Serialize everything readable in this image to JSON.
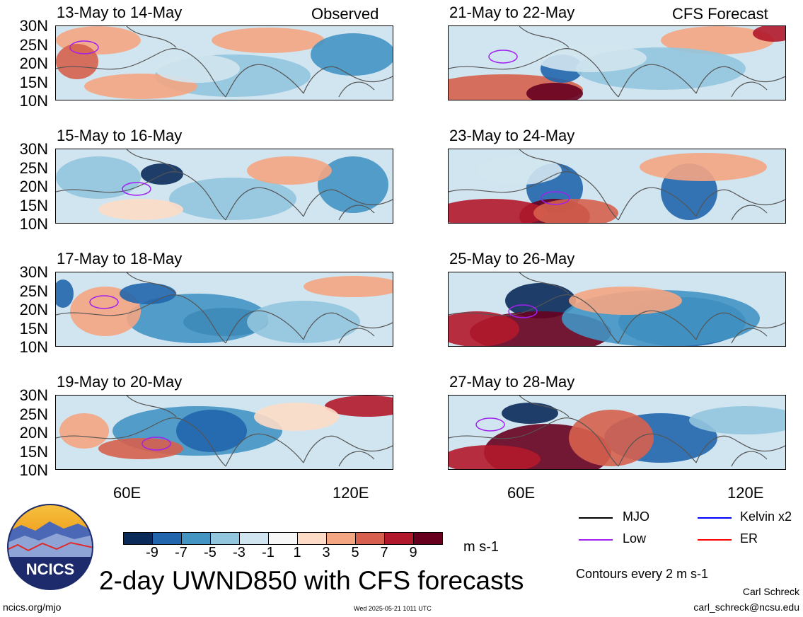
{
  "panels": [
    {
      "title": "13-May to 14-May",
      "tag": "Observed"
    },
    {
      "title": "21-May to 22-May",
      "tag": "CFS Forecast"
    },
    {
      "title": "15-May to 16-May",
      "tag": ""
    },
    {
      "title": "23-May to 24-May",
      "tag": ""
    },
    {
      "title": "17-May to 18-May",
      "tag": ""
    },
    {
      "title": "25-May to 26-May",
      "tag": ""
    },
    {
      "title": "19-May to 20-May",
      "tag": ""
    },
    {
      "title": "27-May to 28-May",
      "tag": ""
    }
  ],
  "lat_labels": [
    "30N",
    "25N",
    "20N",
    "15N",
    "10N"
  ],
  "lon_labels": [
    "60E",
    "120E"
  ],
  "colorbar": {
    "colors": [
      "#0a2a5a",
      "#2166ac",
      "#4393c3",
      "#92c5de",
      "#d1e5f0",
      "#f7f7f7",
      "#fddbc7",
      "#f4a582",
      "#d6604d",
      "#b2182b",
      "#67001f"
    ],
    "labels": [
      "-9",
      "-7",
      "-5",
      "-3",
      "-1",
      "1",
      "3",
      "5",
      "7",
      "9"
    ],
    "units": "m s-1"
  },
  "title": "2-day UWND850 with CFS forecasts",
  "legend": [
    {
      "label": "MJO",
      "color": "#000000"
    },
    {
      "label": "Kelvin x2",
      "color": "#0000ff"
    },
    {
      "label": "Low",
      "color": "#a020f0"
    },
    {
      "label": "ER",
      "color": "#ff0000"
    }
  ],
  "contour_note": "Contours every 2 m s-1",
  "logo_text": "NCICS",
  "footer": {
    "url": "ncics.org/mjo",
    "timestamp": "Wed 2025-05-21 1011 UTC",
    "author": "Carl Schreck",
    "email": "carl_schreck@ncsu.edu"
  }
}
